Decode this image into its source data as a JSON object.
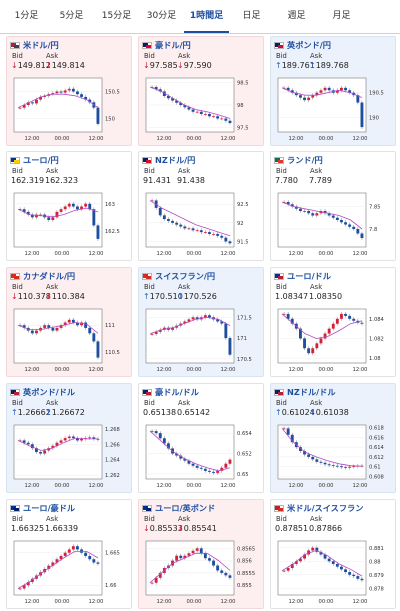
{
  "tabs": [
    {
      "label": "1分足",
      "active": false
    },
    {
      "label": "5分足",
      "active": false
    },
    {
      "label": "15分足",
      "active": false
    },
    {
      "label": "30分足",
      "active": false
    },
    {
      "label": "1時間足",
      "active": true
    },
    {
      "label": "日足",
      "active": false
    },
    {
      "label": "週足",
      "active": false
    },
    {
      "label": "月足",
      "active": false
    }
  ],
  "labels": {
    "bid": "Bid",
    "ask": "Ask"
  },
  "cards": [
    {
      "title": "米ドル/円",
      "trend": "down",
      "bid": "149.812",
      "ask": "149.814",
      "flag_colors": [
        "#b22234",
        "#3c3b6e"
      ],
      "ticks": [
        "150.5",
        "150"
      ],
      "xticks": [
        "12:00",
        "00:00",
        "12:00"
      ],
      "chart_data": {
        "type": "candlestick",
        "y": [
          150.2,
          150.25,
          150.3,
          150.28,
          150.35,
          150.4,
          150.42,
          150.45,
          150.47,
          150.5,
          150.48,
          150.52,
          150.55,
          150.5,
          150.45,
          150.4,
          150.35,
          150.3,
          150.2,
          149.9
        ],
        "ma": [
          150.2,
          150.3,
          150.4,
          150.45,
          150.45,
          150.42,
          150.35,
          150.2
        ],
        "ylim": [
          149.75,
          150.75
        ]
      }
    },
    {
      "title": "豪ドル/円",
      "trend": "down",
      "bid": "97.585",
      "ask": "97.590",
      "flag_colors": [
        "#012169",
        "#e4002b"
      ],
      "ticks": [
        "98.5",
        "98",
        "97.5"
      ],
      "xticks": [
        "12:00",
        "00:00",
        "12:00"
      ],
      "chart_data": {
        "type": "candlestick",
        "y": [
          98.4,
          98.35,
          98.3,
          98.2,
          98.15,
          98.1,
          98.05,
          98.0,
          97.95,
          97.9,
          97.85,
          97.85,
          97.8,
          97.8,
          97.75,
          97.75,
          97.7,
          97.7,
          97.65,
          97.6
        ],
        "ma": [
          98.4,
          98.3,
          98.15,
          98.0,
          97.9,
          97.85,
          97.78,
          97.7
        ],
        "ylim": [
          97.4,
          98.6
        ]
      }
    },
    {
      "title": "英ポンド/円",
      "trend": "up",
      "bid": "189.761",
      "ask": "189.768",
      "flag_colors": [
        "#012169",
        "#c8102e"
      ],
      "ticks": [
        "190.5",
        "190"
      ],
      "xticks": [
        "12:00",
        "00:00",
        "12:00"
      ],
      "chart_data": {
        "type": "candlestick",
        "y": [
          190.6,
          190.55,
          190.5,
          190.45,
          190.4,
          190.35,
          190.4,
          190.45,
          190.5,
          190.55,
          190.6,
          190.55,
          190.5,
          190.55,
          190.6,
          190.55,
          190.5,
          190.45,
          190.3,
          189.8
        ],
        "ma": [
          190.6,
          190.5,
          190.45,
          190.45,
          190.5,
          190.55,
          190.5,
          190.4
        ],
        "ylim": [
          189.7,
          190.8
        ]
      }
    },
    {
      "title": "ユーロ/円",
      "trend": "flat",
      "bid": "162.319",
      "ask": "162.323",
      "flag_colors": [
        "#003399",
        "#ffcc00"
      ],
      "ticks": [
        "163",
        "162.5"
      ],
      "xticks": [
        "12:00",
        "00:00",
        "12:00"
      ],
      "chart_data": {
        "type": "candlestick",
        "y": [
          162.9,
          162.85,
          162.8,
          162.75,
          162.8,
          162.8,
          162.75,
          162.7,
          162.75,
          162.85,
          162.9,
          162.95,
          163.0,
          162.95,
          162.9,
          162.95,
          163.0,
          162.9,
          162.6,
          162.35
        ],
        "ma": [
          162.9,
          162.8,
          162.78,
          162.76,
          162.8,
          162.88,
          162.92,
          162.85
        ],
        "ylim": [
          162.2,
          163.2
        ]
      }
    },
    {
      "title": "NZドル/円",
      "trend": "flat",
      "bid": "91.431",
      "ask": "91.438",
      "flag_colors": [
        "#012169",
        "#cc142b"
      ],
      "ticks": [
        "92.5",
        "92",
        "91.5"
      ],
      "xticks": [
        "12:00",
        "00:00",
        "12:00"
      ],
      "chart_data": {
        "type": "candlestick",
        "y": [
          92.6,
          92.4,
          92.2,
          92.1,
          92.05,
          92.0,
          91.95,
          91.9,
          91.85,
          91.85,
          91.8,
          91.8,
          91.75,
          91.75,
          91.7,
          91.7,
          91.65,
          91.6,
          91.5,
          91.45
        ],
        "ma": [
          92.6,
          92.4,
          92.25,
          92.1,
          91.95,
          91.85,
          91.75,
          91.65
        ],
        "ylim": [
          91.35,
          92.8
        ]
      }
    },
    {
      "title": "ランド/円",
      "trend": "flat",
      "bid": "7.780",
      "ask": "7.789",
      "flag_colors": [
        "#007a4d",
        "#de3831"
      ],
      "ticks": [
        "7.85",
        "7.8"
      ],
      "xticks": [
        "12:00",
        "00:00",
        "12:00"
      ],
      "chart_data": {
        "type": "candlestick",
        "y": [
          7.86,
          7.855,
          7.85,
          7.845,
          7.84,
          7.84,
          7.835,
          7.83,
          7.835,
          7.84,
          7.835,
          7.83,
          7.825,
          7.82,
          7.815,
          7.81,
          7.805,
          7.8,
          7.79,
          7.78
        ],
        "ma": [
          7.86,
          7.85,
          7.845,
          7.84,
          7.835,
          7.83,
          7.82,
          7.8
        ],
        "ylim": [
          7.76,
          7.88
        ]
      }
    },
    {
      "title": "カナダドル/円",
      "trend": "down",
      "bid": "110.378",
      "ask": "110.384",
      "flag_colors": [
        "#d52b1e",
        "#d52b1e"
      ],
      "ticks": [
        "111",
        "110.5"
      ],
      "xticks": [
        "12:00",
        "00:00",
        "12:00"
      ],
      "chart_data": {
        "type": "candlestick",
        "y": [
          111.0,
          110.95,
          110.9,
          110.85,
          110.9,
          110.95,
          111.0,
          110.95,
          110.9,
          110.95,
          111.0,
          111.05,
          111.1,
          111.05,
          111.0,
          111.05,
          110.95,
          110.85,
          110.7,
          110.4
        ],
        "ma": [
          111.0,
          110.92,
          110.92,
          110.96,
          111.0,
          111.05,
          111.02,
          110.85
        ],
        "ylim": [
          110.3,
          111.3
        ]
      }
    },
    {
      "title": "スイスフラン/円",
      "trend": "up",
      "bid": "170.510",
      "ask": "170.526",
      "flag_colors": [
        "#d52b1e",
        "#d52b1e"
      ],
      "ticks": [
        "171.5",
        "171",
        "170.5"
      ],
      "xticks": [
        "12:00",
        "00:00",
        "12:00"
      ],
      "chart_data": {
        "type": "candlestick",
        "y": [
          171.1,
          171.15,
          171.2,
          171.25,
          171.2,
          171.25,
          171.3,
          171.35,
          171.4,
          171.45,
          171.5,
          171.45,
          171.5,
          171.55,
          171.5,
          171.45,
          171.4,
          171.35,
          171.0,
          170.6
        ],
        "ma": [
          171.1,
          171.2,
          171.25,
          171.35,
          171.45,
          171.5,
          171.45,
          171.3
        ],
        "ylim": [
          170.4,
          171.7
        ]
      }
    },
    {
      "title": "ユーロ/ドル",
      "trend": "flat",
      "bid": "1.08347",
      "ask": "1.08350",
      "flag_colors": [
        "#003399",
        "#b22234"
      ],
      "ticks": [
        "1.084",
        "1.082",
        "1.08"
      ],
      "xticks": [
        "12:00",
        "00:00",
        "12:00"
      ],
      "chart_data": {
        "type": "candlestick",
        "y": [
          1.0845,
          1.084,
          1.0835,
          1.083,
          1.082,
          1.081,
          1.0805,
          1.081,
          1.0815,
          1.082,
          1.0825,
          1.083,
          1.0835,
          1.084,
          1.0845,
          1.0843,
          1.084,
          1.0838,
          1.0836,
          1.0835
        ],
        "ma": [
          1.0845,
          1.0835,
          1.0825,
          1.082,
          1.0822,
          1.0828,
          1.0835,
          1.0838
        ],
        "ylim": [
          1.0795,
          1.085
        ]
      }
    },
    {
      "title": "英ポンド/ドル",
      "trend": "up",
      "bid": "1.26662",
      "ask": "1.26672",
      "flag_colors": [
        "#012169",
        "#b22234"
      ],
      "ticks": [
        "1.268",
        "1.266",
        "1.264",
        "1.262"
      ],
      "xticks": [
        "12:00",
        "00:00",
        "12:00"
      ],
      "chart_data": {
        "type": "candlestick",
        "y": [
          1.2665,
          1.2662,
          1.266,
          1.2655,
          1.265,
          1.2648,
          1.2652,
          1.2655,
          1.2658,
          1.2662,
          1.2665,
          1.2668,
          1.267,
          1.2668,
          1.2665,
          1.2667,
          1.2668,
          1.2669,
          1.2667,
          1.2666
        ],
        "ma": [
          1.2665,
          1.2658,
          1.2652,
          1.2655,
          1.2662,
          1.2668,
          1.2667,
          1.2667
        ],
        "ylim": [
          1.2615,
          1.2685
        ]
      }
    },
    {
      "title": "豪ドル/ドル",
      "trend": "flat",
      "bid": "0.65138",
      "ask": "0.65142",
      "flag_colors": [
        "#012169",
        "#b22234"
      ],
      "ticks": [
        "0.654",
        "0.652",
        "0.65"
      ],
      "xticks": [
        "12:00",
        "00:00",
        "12:00"
      ],
      "chart_data": {
        "type": "candlestick",
        "y": [
          0.6542,
          0.654,
          0.6535,
          0.653,
          0.6525,
          0.652,
          0.6518,
          0.6515,
          0.6513,
          0.651,
          0.6508,
          0.6506,
          0.6505,
          0.6503,
          0.6502,
          0.6501,
          0.6503,
          0.6506,
          0.651,
          0.6514
        ],
        "ma": [
          0.6542,
          0.6532,
          0.6522,
          0.6515,
          0.651,
          0.6506,
          0.6503,
          0.6506
        ],
        "ylim": [
          0.6495,
          0.6548
        ]
      }
    },
    {
      "title": "NZドル/ドル",
      "trend": "up",
      "bid": "0.61024",
      "ask": "0.61038",
      "flag_colors": [
        "#012169",
        "#b22234"
      ],
      "ticks": [
        "0.618",
        "0.616",
        "0.614",
        "0.612",
        "0.61",
        "0.608"
      ],
      "xticks": [
        "12:00",
        "00:00",
        "12:00"
      ],
      "chart_data": {
        "type": "candlestick",
        "y": [
          0.6178,
          0.6165,
          0.615,
          0.614,
          0.6132,
          0.6125,
          0.612,
          0.6115,
          0.611,
          0.6108,
          0.6105,
          0.6103,
          0.6102,
          0.6101,
          0.6099,
          0.6098,
          0.61,
          0.6101,
          0.6102,
          0.6102
        ],
        "ma": [
          0.6178,
          0.615,
          0.613,
          0.612,
          0.6112,
          0.6106,
          0.6102,
          0.6101
        ],
        "ylim": [
          0.6075,
          0.6185
        ]
      }
    },
    {
      "title": "ユーロ/豪ドル",
      "trend": "flat",
      "bid": "1.66325",
      "ask": "1.66339",
      "flag_colors": [
        "#003399",
        "#012169"
      ],
      "ticks": [
        "1.665",
        "1.66"
      ],
      "xticks": [
        "12:00",
        "00:00",
        "12:00"
      ],
      "chart_data": {
        "type": "candlestick",
        "y": [
          1.6595,
          1.66,
          1.6605,
          1.661,
          1.6615,
          1.662,
          1.6625,
          1.663,
          1.6635,
          1.664,
          1.6645,
          1.665,
          1.6655,
          1.666,
          1.6655,
          1.665,
          1.6645,
          1.664,
          1.6635,
          1.6633
        ],
        "ma": [
          1.6595,
          1.6605,
          1.6618,
          1.663,
          1.6642,
          1.6652,
          1.6652,
          1.6642
        ],
        "ylim": [
          1.6585,
          1.6668
        ]
      }
    },
    {
      "title": "ユーロ/英ポンド",
      "trend": "down",
      "bid": "0.85533",
      "ask": "0.85541",
      "flag_colors": [
        "#003399",
        "#012169"
      ],
      "ticks": [
        "0.8565",
        "0.856",
        "0.8555",
        "0.855"
      ],
      "xticks": [
        "12:00",
        "00:00",
        "12:00"
      ],
      "chart_data": {
        "type": "candlestick",
        "y": [
          0.8551,
          0.8553,
          0.8555,
          0.8557,
          0.8558,
          0.856,
          0.8562,
          0.8561,
          0.8562,
          0.8563,
          0.8564,
          0.8565,
          0.8563,
          0.8561,
          0.856,
          0.8558,
          0.8556,
          0.8555,
          0.8554,
          0.8553
        ],
        "ma": [
          0.8551,
          0.8555,
          0.8559,
          0.8561,
          0.8563,
          0.8563,
          0.856,
          0.8556
        ],
        "ylim": [
          0.8546,
          0.8568
        ]
      }
    },
    {
      "title": "米ドル/スイスフラン",
      "trend": "flat",
      "bid": "0.87851",
      "ask": "0.87866",
      "flag_colors": [
        "#b22234",
        "#d52b1e"
      ],
      "ticks": [
        "0.881",
        "0.88",
        "0.879",
        "0.878"
      ],
      "xticks": [
        "12:00",
        "00:00",
        "12:00"
      ],
      "chart_data": {
        "type": "candlestick",
        "y": [
          0.8793,
          0.8795,
          0.8798,
          0.88,
          0.8802,
          0.8805,
          0.8808,
          0.881,
          0.8807,
          0.8805,
          0.8802,
          0.88,
          0.8798,
          0.8796,
          0.8794,
          0.8792,
          0.879,
          0.8789,
          0.8787,
          0.8786
        ],
        "ma": [
          0.8793,
          0.8798,
          0.8805,
          0.8808,
          0.8804,
          0.8798,
          0.8794,
          0.8789
        ],
        "ylim": [
          0.8775,
          0.8815
        ]
      }
    }
  ]
}
